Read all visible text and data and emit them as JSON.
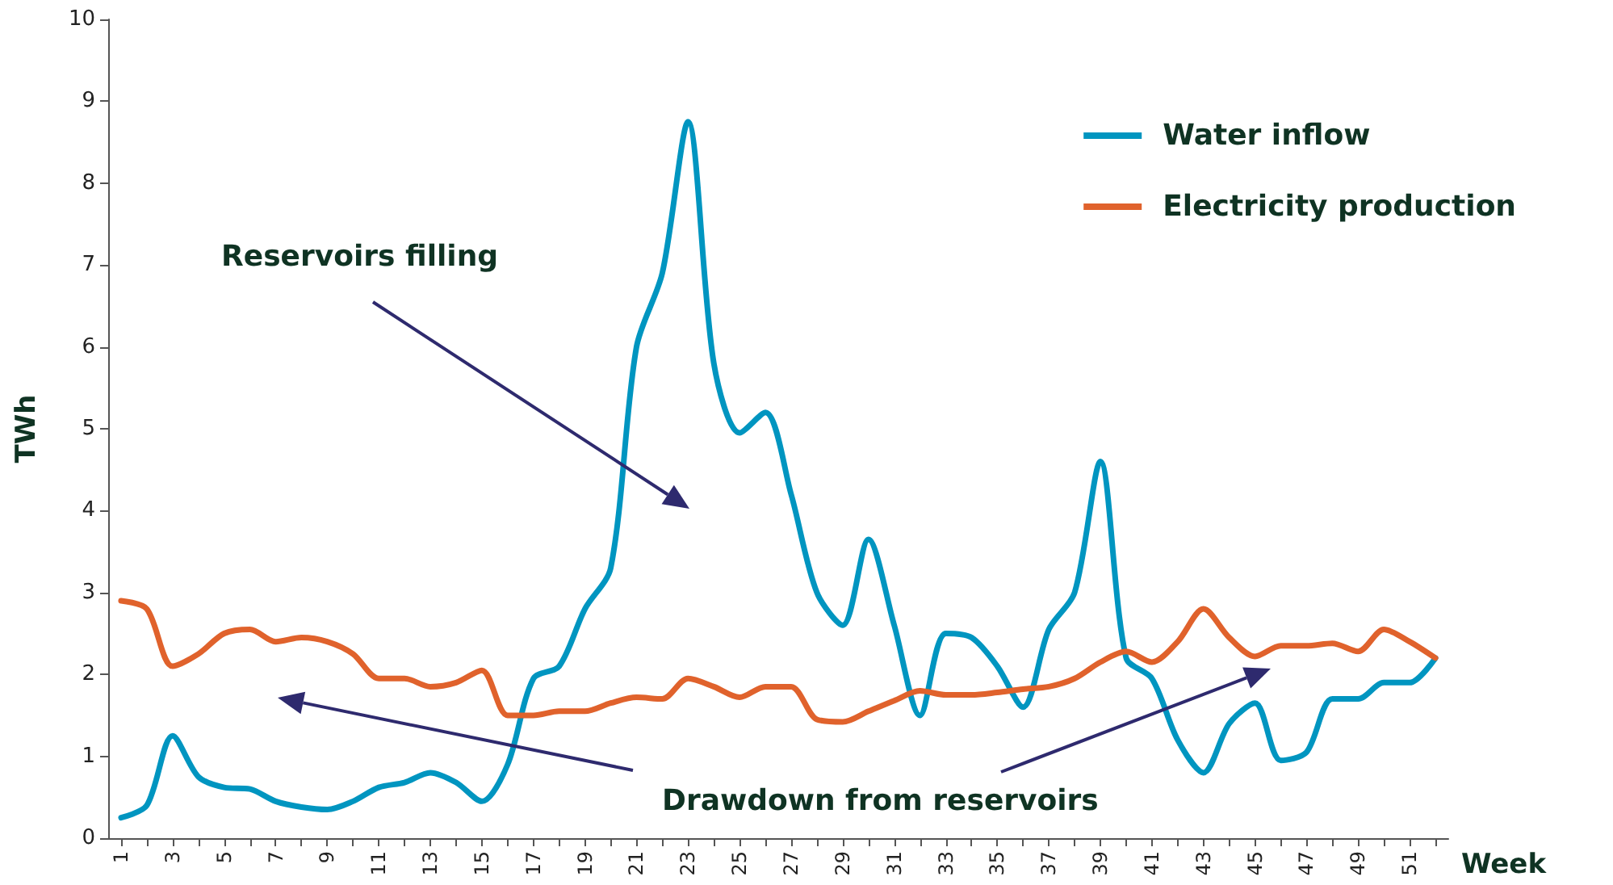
{
  "chart_data": {
    "type": "line",
    "xlabel": "Week",
    "ylabel": "TWh",
    "categories": [
      "1",
      null,
      "3",
      null,
      "5",
      null,
      "7",
      null,
      "9",
      null,
      "11",
      null,
      "13",
      null,
      "15",
      null,
      "17",
      null,
      "19",
      null,
      "21",
      null,
      "23",
      null,
      "25",
      null,
      "27",
      null,
      "29",
      null,
      "31",
      null,
      "33",
      null,
      "35",
      null,
      "37",
      null,
      "39",
      null,
      "41",
      null,
      "43",
      null,
      "45",
      null,
      "47",
      null,
      "49",
      null,
      "51",
      null
    ],
    "series": [
      {
        "name": "Water inflow",
        "color": "#0095c0",
        "values": [
          0.25,
          0.4,
          1.25,
          0.75,
          0.62,
          0.6,
          0.45,
          0.38,
          0.35,
          0.45,
          0.62,
          0.68,
          0.8,
          0.68,
          0.45,
          0.9,
          1.95,
          2.1,
          2.8,
          3.3,
          6.0,
          6.9,
          8.75,
          5.8,
          4.95,
          5.2,
          4.2,
          3.0,
          2.6,
          3.65,
          2.6,
          1.5,
          2.5,
          2.45,
          2.1,
          1.6,
          2.55,
          3.0,
          4.6,
          2.2,
          1.95,
          1.2,
          0.8,
          1.4,
          1.65,
          0.95,
          1.05,
          1.7,
          1.7,
          1.9,
          1.9,
          2.2
        ]
      },
      {
        "name": "Electricity production",
        "color": "#e0622c",
        "values": [
          2.9,
          2.8,
          2.1,
          2.25,
          2.5,
          2.55,
          2.4,
          2.45,
          2.4,
          2.25,
          1.95,
          1.95,
          1.85,
          1.9,
          2.05,
          1.5,
          1.5,
          1.55,
          1.55,
          1.65,
          1.72,
          1.7,
          1.95,
          1.85,
          1.72,
          1.85,
          1.85,
          1.45,
          1.42,
          1.55,
          1.68,
          1.8,
          1.75,
          1.75,
          1.78,
          1.82,
          1.85,
          1.95,
          2.15,
          2.28,
          2.15,
          2.4,
          2.8,
          2.45,
          2.22,
          2.35,
          2.35,
          2.38,
          2.28,
          2.55,
          2.4,
          2.2
        ]
      }
    ],
    "ylim": [
      0,
      10
    ],
    "yticks": [
      0,
      1,
      2,
      3,
      4,
      5,
      6,
      7,
      8,
      9,
      10
    ],
    "grid": false,
    "legend": "top right",
    "marker": "none",
    "line_style": "solid",
    "annotations": [
      "Reservoirs filling",
      "Drawdown from reservoirs"
    ]
  }
}
